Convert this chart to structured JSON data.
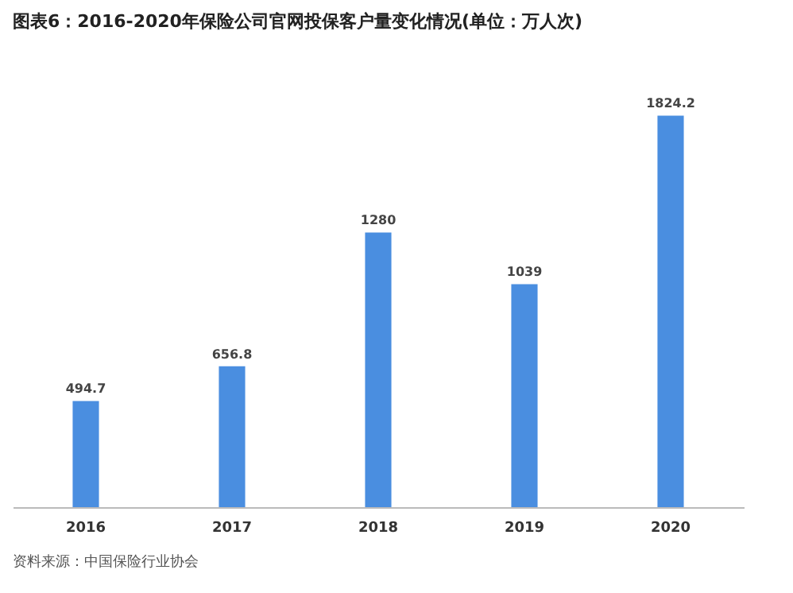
{
  "chart_data": {
    "type": "bar",
    "title": "图表6：2016-2020年保险公司官网投保客户量变化情况(单位：万人次)",
    "categories": [
      "2016",
      "2017",
      "2018",
      "2019",
      "2020"
    ],
    "values": [
      494.7,
      656.8,
      1280,
      1039,
      1824.2
    ],
    "color": "#4a8ee0",
    "data_labels": true,
    "tick_labels": "x",
    "annotations": [
      "资料来源：中国保险行业协会"
    ]
  }
}
